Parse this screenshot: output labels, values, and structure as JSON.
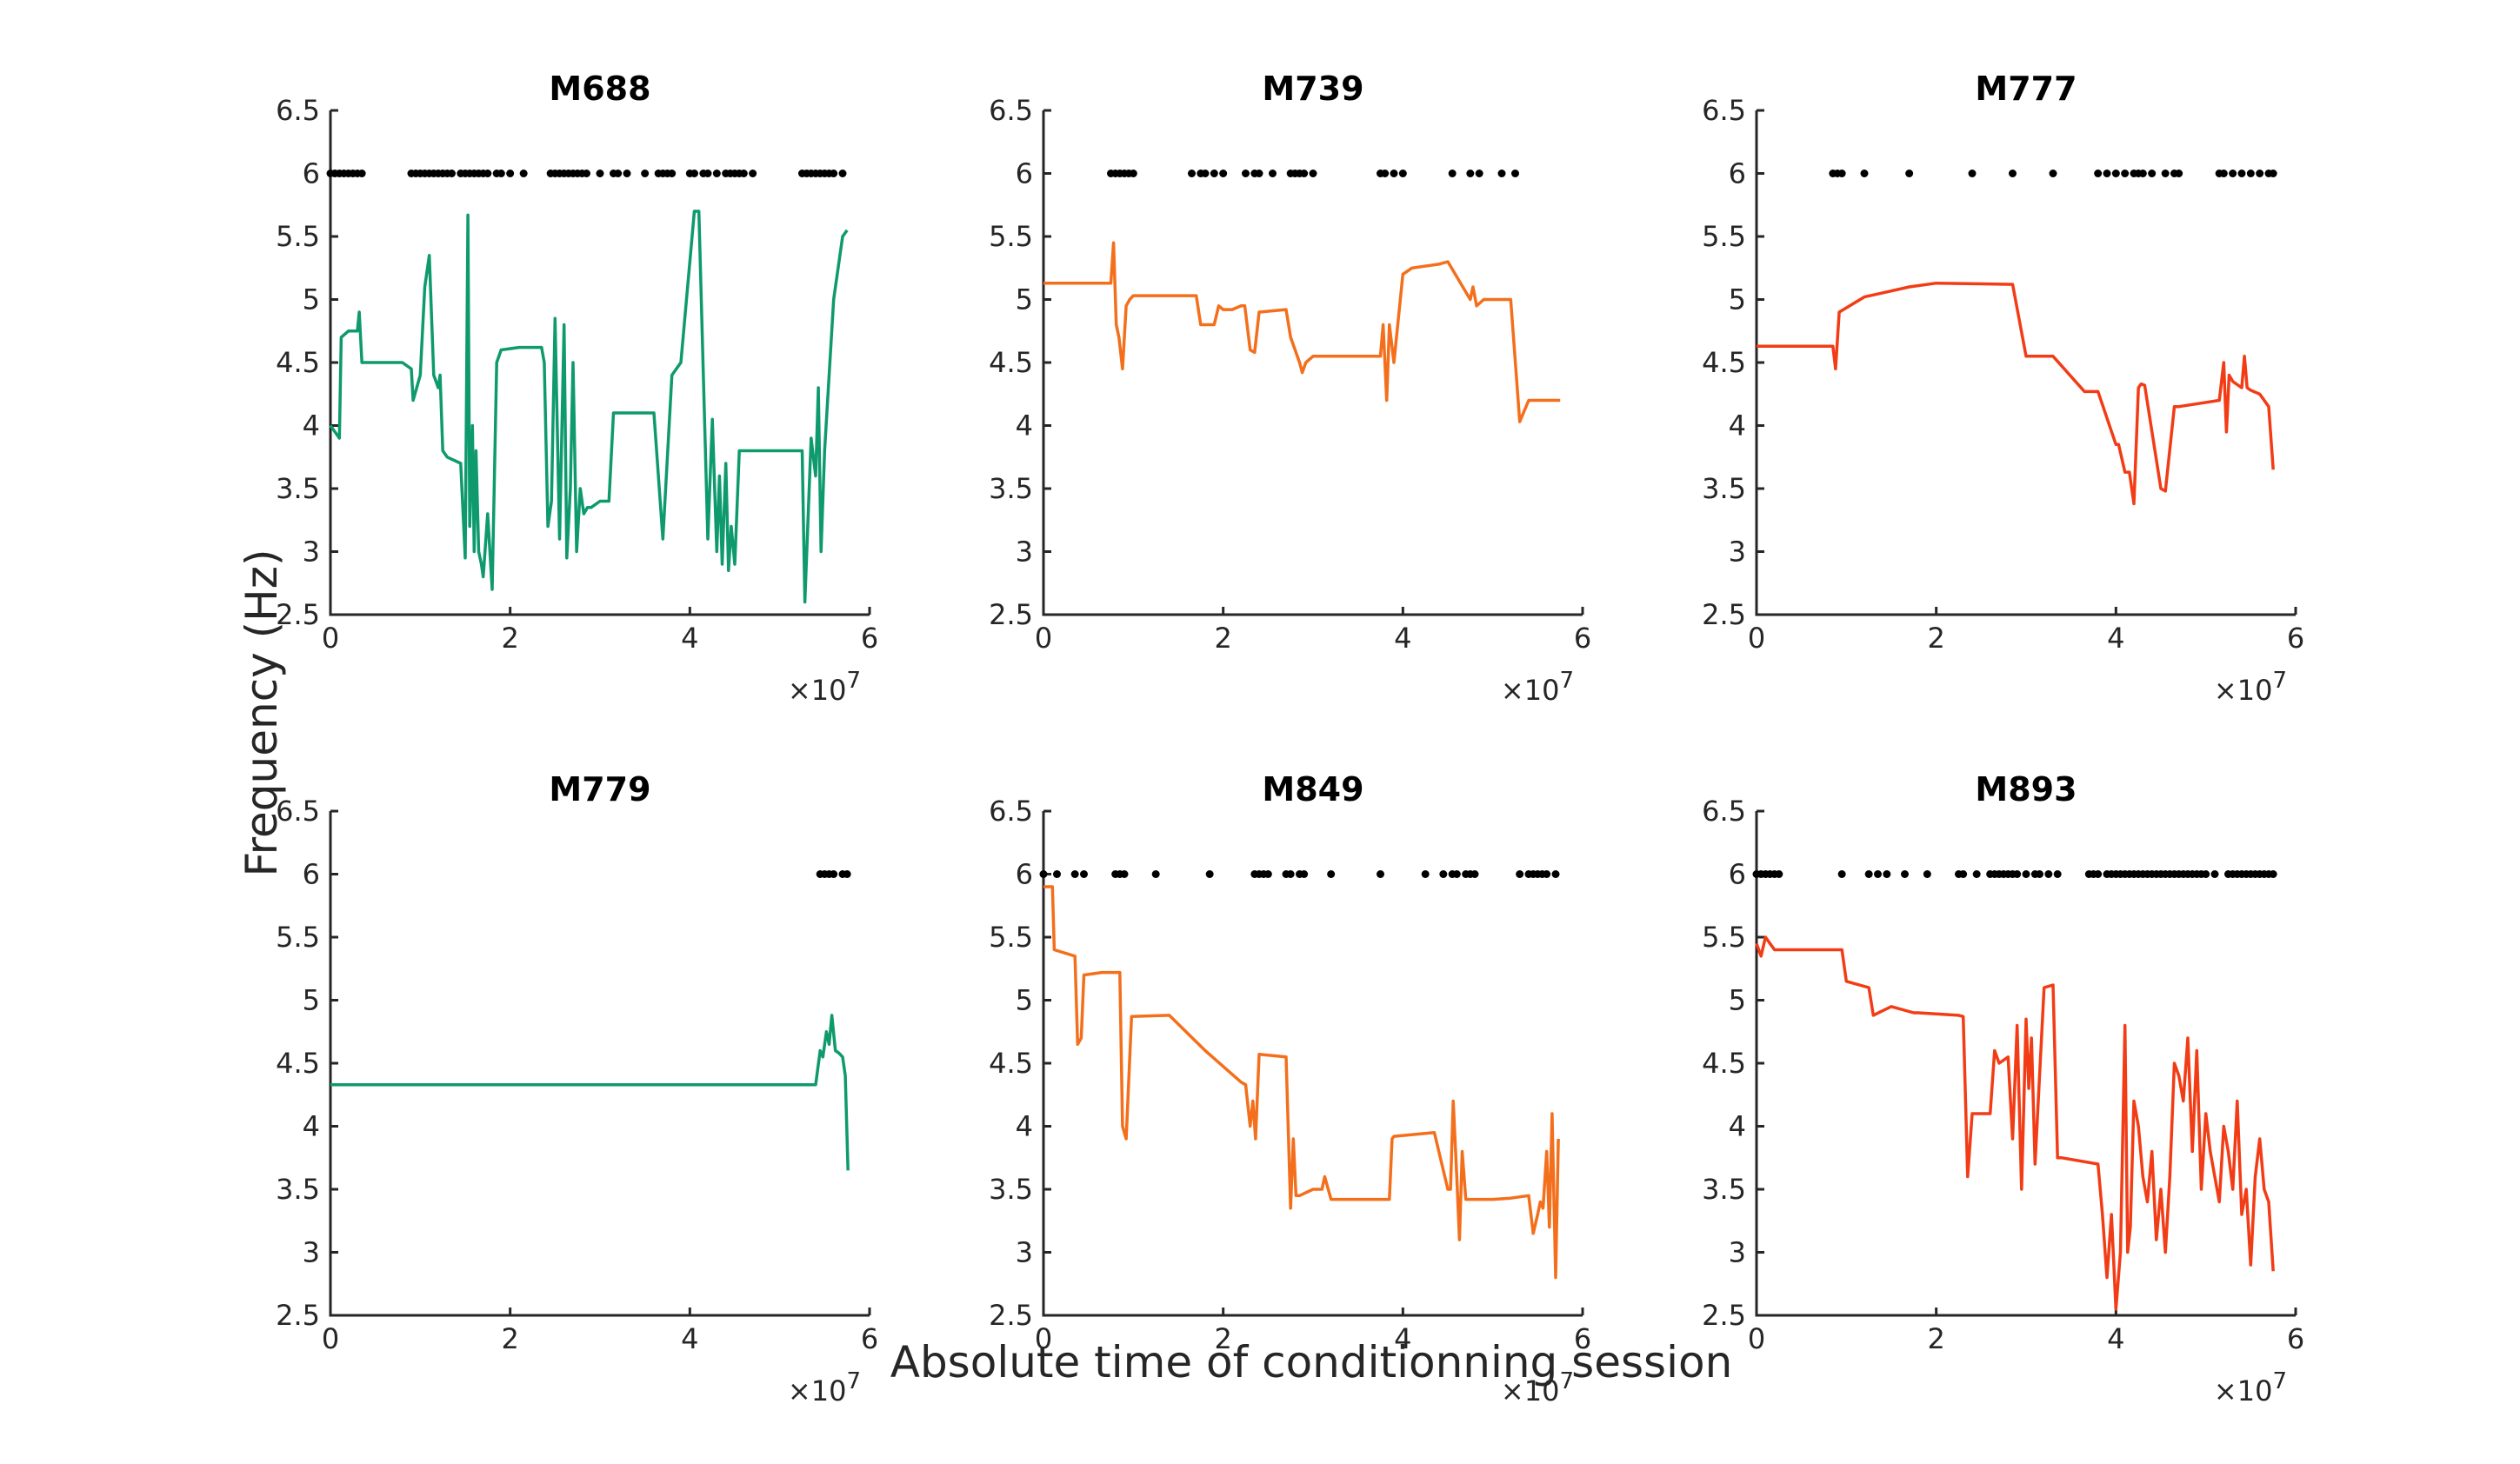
{
  "figure": {
    "ylabel": "Frequency (Hz)",
    "xlabel": "Absolute time of conditionning session"
  },
  "chart_data": [
    {
      "type": "line",
      "title": "M688",
      "color": "#0f9a6e",
      "xlim": [
        0,
        60000000
      ],
      "ylim": [
        2.5,
        6.5
      ],
      "xticks": [
        0,
        20000000,
        40000000,
        60000000
      ],
      "xtick_labels": [
        "0",
        "2",
        "4",
        "6"
      ],
      "yticks": [
        2.5,
        3,
        3.5,
        4,
        4.5,
        5,
        5.5,
        6,
        6.5
      ],
      "ytick_labels": [
        "2.5",
        "3",
        "3.5",
        "4",
        "4.5",
        "5",
        "5.5",
        "6",
        "6.5"
      ],
      "x_multiplier": "×10",
      "x_multiplier_exp": "7",
      "events_y": 6,
      "events_x": [
        0,
        500000,
        1000000,
        1500000,
        2000000,
        2500000,
        3000000,
        3500000,
        9000000,
        9500000,
        10000000,
        10500000,
        11000000,
        11500000,
        12000000,
        12500000,
        13000000,
        13500000,
        14500000,
        15000000,
        15500000,
        16000000,
        16500000,
        17000000,
        17500000,
        18500000,
        19000000,
        20000000,
        21500000,
        24500000,
        25000000,
        25500000,
        26000000,
        26500000,
        27000000,
        27500000,
        28000000,
        28500000,
        30000000,
        31500000,
        32000000,
        33000000,
        35000000,
        36500000,
        37000000,
        37500000,
        38000000,
        40000000,
        40500000,
        41500000,
        42000000,
        43000000,
        44000000,
        44500000,
        45000000,
        45500000,
        46000000,
        47000000,
        52500000,
        53000000,
        53500000,
        54000000,
        54500000,
        55000000,
        55500000,
        56000000,
        57000000
      ],
      "x": [
        0,
        1000000,
        1200000,
        2000000,
        3000000,
        3200000,
        3500000,
        8000000,
        9000000,
        9200000,
        10000000,
        10500000,
        11000000,
        11500000,
        12000000,
        12200000,
        12500000,
        13000000,
        14500000,
        15000000,
        15300000,
        15500000,
        15800000,
        16000000,
        16200000,
        16500000,
        16800000,
        17000000,
        17500000,
        18000000,
        18500000,
        19000000,
        21000000,
        23500000,
        23800000,
        24200000,
        24600000,
        25000000,
        25500000,
        26000000,
        26300000,
        26700000,
        27000000,
        27400000,
        27800000,
        28200000,
        28600000,
        29000000,
        30000000,
        31000000,
        31500000,
        33000000,
        36000000,
        37000000,
        38000000,
        39000000,
        40500000,
        41000000,
        42000000,
        42500000,
        43000000,
        43300000,
        43600000,
        44000000,
        44300000,
        44600000,
        45000000,
        45500000,
        47000000,
        52500000,
        52800000,
        53500000,
        54000000,
        54300000,
        54600000,
        55000000,
        55500000,
        56000000,
        57000000,
        57500000
      ],
      "y": [
        4.0,
        3.9,
        4.7,
        4.75,
        4.75,
        4.9,
        4.5,
        4.5,
        4.45,
        4.2,
        4.4,
        5.1,
        5.35,
        4.4,
        4.3,
        4.4,
        3.8,
        3.75,
        3.7,
        2.95,
        5.67,
        3.2,
        4.0,
        3.0,
        3.8,
        3.0,
        2.9,
        2.8,
        3.3,
        2.7,
        4.5,
        4.6,
        4.62,
        4.62,
        4.5,
        3.2,
        3.4,
        4.85,
        3.1,
        4.8,
        2.95,
        3.5,
        4.5,
        3.0,
        3.5,
        3.3,
        3.35,
        3.35,
        3.4,
        3.4,
        4.1,
        4.1,
        4.1,
        3.1,
        4.4,
        4.5,
        5.7,
        5.7,
        3.1,
        4.05,
        3.0,
        3.6,
        2.9,
        3.7,
        2.85,
        3.2,
        2.9,
        3.8,
        3.8,
        3.8,
        2.6,
        3.9,
        3.6,
        4.3,
        3.0,
        3.8,
        4.4,
        5.0,
        5.5,
        5.55
      ]
    },
    {
      "type": "line",
      "title": "M739",
      "color": "#f36f1c",
      "xlim": [
        0,
        60000000
      ],
      "ylim": [
        2.5,
        6.5
      ],
      "xticks": [
        0,
        20000000,
        40000000,
        60000000
      ],
      "xtick_labels": [
        "0",
        "2",
        "4",
        "6"
      ],
      "yticks": [
        2.5,
        3,
        3.5,
        4,
        4.5,
        5,
        5.5,
        6,
        6.5
      ],
      "ytick_labels": [
        "2.5",
        "3",
        "3.5",
        "4",
        "4.5",
        "5",
        "5.5",
        "6",
        "6.5"
      ],
      "x_multiplier": "×10",
      "x_multiplier_exp": "7",
      "events_y": 6,
      "events_x": [
        7500000,
        8000000,
        8500000,
        9000000,
        9500000,
        10000000,
        16500000,
        17500000,
        18000000,
        19000000,
        20000000,
        22500000,
        23500000,
        24000000,
        25500000,
        27500000,
        28000000,
        28500000,
        29000000,
        30000000,
        37500000,
        38000000,
        39000000,
        40000000,
        45500000,
        47500000,
        48500000,
        51000000,
        52500000
      ],
      "x": [
        0,
        7500000,
        7800000,
        8100000,
        8400000,
        8800000,
        9200000,
        9600000,
        10000000,
        11500000,
        17000000,
        17500000,
        19000000,
        19500000,
        20000000,
        21000000,
        22000000,
        22400000,
        23000000,
        23500000,
        24000000,
        27000000,
        27500000,
        28500000,
        28800000,
        29200000,
        30000000,
        36500000,
        37500000,
        37800000,
        38200000,
        38500000,
        39000000,
        40000000,
        41000000,
        44000000,
        45000000,
        47500000,
        47800000,
        48200000,
        49000000,
        51500000,
        52000000,
        53000000,
        54000000,
        57500000
      ],
      "y": [
        5.13,
        5.13,
        5.45,
        4.8,
        4.7,
        4.45,
        4.95,
        5.0,
        5.03,
        5.03,
        5.03,
        4.8,
        4.8,
        4.95,
        4.92,
        4.92,
        4.95,
        4.95,
        4.6,
        4.58,
        4.9,
        4.92,
        4.7,
        4.5,
        4.42,
        4.5,
        4.55,
        4.55,
        4.55,
        4.8,
        4.2,
        4.8,
        4.5,
        5.2,
        5.25,
        5.28,
        5.3,
        5.0,
        5.1,
        4.95,
        5.0,
        5.0,
        5.0,
        4.03,
        4.2,
        4.2
      ]
    },
    {
      "type": "line",
      "title": "M777",
      "color": "#f23c16",
      "xlim": [
        0,
        60000000
      ],
      "ylim": [
        2.5,
        6.5
      ],
      "xticks": [
        0,
        20000000,
        40000000,
        60000000
      ],
      "xtick_labels": [
        "0",
        "2",
        "4",
        "6"
      ],
      "yticks": [
        2.5,
        3,
        3.5,
        4,
        4.5,
        5,
        5.5,
        6,
        6.5
      ],
      "ytick_labels": [
        "2.5",
        "3",
        "3.5",
        "4",
        "4.5",
        "5",
        "5.5",
        "6",
        "6.5"
      ],
      "x_multiplier": "×10",
      "x_multiplier_exp": "7",
      "events_y": 6,
      "events_x": [
        8500000,
        9000000,
        9500000,
        12000000,
        17000000,
        24000000,
        28500000,
        33000000,
        38000000,
        39000000,
        40000000,
        41000000,
        42000000,
        42500000,
        43000000,
        44000000,
        45500000,
        46500000,
        47000000,
        51500000,
        52000000,
        53000000,
        54000000,
        55000000,
        56000000,
        57000000,
        57500000
      ],
      "x": [
        0,
        8500000,
        8800000,
        9200000,
        12000000,
        17000000,
        20000000,
        28500000,
        30000000,
        33000000,
        36500000,
        38000000,
        40000000,
        40300000,
        41000000,
        41500000,
        42000000,
        42500000,
        42800000,
        43200000,
        45000000,
        45500000,
        46500000,
        46800000,
        47000000,
        51500000,
        52000000,
        52300000,
        52600000,
        53000000,
        54000000,
        54300000,
        54600000,
        55000000,
        56000000,
        57000000,
        57500000
      ],
      "y": [
        4.63,
        4.63,
        4.45,
        4.9,
        5.02,
        5.1,
        5.13,
        5.12,
        4.55,
        4.55,
        4.27,
        4.27,
        3.85,
        3.85,
        3.63,
        3.63,
        3.38,
        4.3,
        4.33,
        4.32,
        3.5,
        3.48,
        4.15,
        4.15,
        4.15,
        4.2,
        4.5,
        3.95,
        4.4,
        4.35,
        4.3,
        4.55,
        4.3,
        4.28,
        4.25,
        4.15,
        3.65
      ]
    },
    {
      "type": "line",
      "title": "M779",
      "color": "#0f9a6e",
      "xlim": [
        0,
        60000000
      ],
      "ylim": [
        2.5,
        6.5
      ],
      "xticks": [
        0,
        20000000,
        40000000,
        60000000
      ],
      "xtick_labels": [
        "0",
        "2",
        "4",
        "6"
      ],
      "yticks": [
        2.5,
        3,
        3.5,
        4,
        4.5,
        5,
        5.5,
        6,
        6.5
      ],
      "ytick_labels": [
        "2.5",
        "3",
        "3.5",
        "4",
        "4.5",
        "5",
        "5.5",
        "6",
        "6.5"
      ],
      "x_multiplier": "×10",
      "x_multiplier_exp": "7",
      "events_y": 6,
      "events_x": [
        54500000,
        55000000,
        55500000,
        56000000,
        57000000,
        57500000
      ],
      "x": [
        0,
        54000000,
        54500000,
        54800000,
        55200000,
        55500000,
        55800000,
        56200000,
        56600000,
        57000000,
        57300000,
        57600000
      ],
      "y": [
        4.33,
        4.33,
        4.6,
        4.55,
        4.75,
        4.65,
        4.88,
        4.6,
        4.58,
        4.55,
        4.4,
        3.65
      ]
    },
    {
      "type": "line",
      "title": "M849",
      "color": "#f36f1c",
      "xlim": [
        0,
        60000000
      ],
      "ylim": [
        2.5,
        6.5
      ],
      "xticks": [
        0,
        20000000,
        40000000,
        60000000
      ],
      "xtick_labels": [
        "0",
        "2",
        "4",
        "6"
      ],
      "yticks": [
        2.5,
        3,
        3.5,
        4,
        4.5,
        5,
        5.5,
        6,
        6.5
      ],
      "ytick_labels": [
        "2.5",
        "3",
        "3.5",
        "4",
        "4.5",
        "5",
        "5.5",
        "6",
        "6.5"
      ],
      "x_multiplier": "×10",
      "x_multiplier_exp": "7",
      "events_y": 6,
      "events_x": [
        0,
        1500000,
        3500000,
        4500000,
        8000000,
        8500000,
        9000000,
        12500000,
        18500000,
        23500000,
        24000000,
        24500000,
        25000000,
        27000000,
        27500000,
        28500000,
        29000000,
        32000000,
        37500000,
        42500000,
        44500000,
        45500000,
        46000000,
        47000000,
        47500000,
        48000000,
        53000000,
        54000000,
        54500000,
        55000000,
        55500000,
        56000000,
        57000000
      ],
      "x": [
        0,
        1000000,
        1200000,
        3500000,
        3800000,
        4200000,
        4500000,
        6500000,
        8500000,
        8800000,
        9200000,
        9800000,
        14000000,
        18000000,
        22000000,
        22500000,
        23000000,
        23300000,
        23600000,
        24000000,
        27000000,
        27500000,
        27800000,
        28100000,
        28500000,
        30000000,
        31000000,
        31300000,
        32000000,
        38000000,
        38500000,
        38800000,
        39000000,
        43500000,
        45000000,
        45300000,
        45600000,
        46000000,
        46300000,
        46600000,
        47000000,
        50000000,
        52000000,
        54000000,
        54500000,
        55000000,
        55300000,
        55600000,
        56000000,
        56300000,
        56600000,
        57000000,
        57300000
      ],
      "y": [
        5.9,
        5.9,
        5.4,
        5.35,
        4.65,
        4.7,
        5.2,
        5.22,
        5.22,
        4.0,
        3.9,
        4.87,
        4.88,
        4.6,
        4.35,
        4.33,
        4.0,
        4.2,
        3.9,
        4.57,
        4.55,
        3.35,
        3.9,
        3.45,
        3.45,
        3.5,
        3.5,
        3.6,
        3.42,
        3.42,
        3.42,
        3.9,
        3.92,
        3.95,
        3.5,
        3.5,
        4.2,
        3.6,
        3.1,
        3.8,
        3.42,
        3.42,
        3.43,
        3.45,
        3.15,
        3.3,
        3.4,
        3.35,
        3.8,
        3.2,
        4.1,
        2.8,
        3.9
      ]
    },
    {
      "type": "line",
      "title": "M893",
      "color": "#f23c16",
      "xlim": [
        0,
        60000000
      ],
      "ylim": [
        2.5,
        6.5
      ],
      "xticks": [
        0,
        20000000,
        40000000,
        60000000
      ],
      "xtick_labels": [
        "0",
        "2",
        "4",
        "6"
      ],
      "yticks": [
        2.5,
        3,
        3.5,
        4,
        4.5,
        5,
        5.5,
        6,
        6.5
      ],
      "ytick_labels": [
        "2.5",
        "3",
        "3.5",
        "4",
        "4.5",
        "5",
        "5.5",
        "6",
        "6.5"
      ],
      "x_multiplier": "×10",
      "x_multiplier_exp": "7",
      "events_y": 6,
      "events_x": [
        0,
        500000,
        1000000,
        1500000,
        2000000,
        2500000,
        9500000,
        12500000,
        13500000,
        14500000,
        16500000,
        19000000,
        22500000,
        23000000,
        24500000,
        26000000,
        26500000,
        27000000,
        27500000,
        28000000,
        28500000,
        29000000,
        30000000,
        31000000,
        31500000,
        32500000,
        33500000,
        37000000,
        37500000,
        38000000,
        39000000,
        39500000,
        40000000,
        40500000,
        41000000,
        41500000,
        42000000,
        42500000,
        43000000,
        43500000,
        44000000,
        44500000,
        45000000,
        45500000,
        46000000,
        46500000,
        47000000,
        47500000,
        48000000,
        48500000,
        49000000,
        49500000,
        50000000,
        51000000,
        52500000,
        53000000,
        53500000,
        54000000,
        54500000,
        55000000,
        55500000,
        56000000,
        56500000,
        57000000,
        57500000
      ],
      "x": [
        0,
        500000,
        1000000,
        1500000,
        2000000,
        4000000,
        9500000,
        10000000,
        12500000,
        13000000,
        15000000,
        17500000,
        18000000,
        22500000,
        23000000,
        23500000,
        24000000,
        26000000,
        26500000,
        27000000,
        28000000,
        28500000,
        29000000,
        29500000,
        30000000,
        30300000,
        30600000,
        31000000,
        32000000,
        33000000,
        33500000,
        34000000,
        38000000,
        38500000,
        39000000,
        39500000,
        40000000,
        40500000,
        41000000,
        41300000,
        41600000,
        42000000,
        42500000,
        43000000,
        43500000,
        44000000,
        44500000,
        45000000,
        45500000,
        46000000,
        46500000,
        47000000,
        47500000,
        48000000,
        48500000,
        49000000,
        49500000,
        50000000,
        50500000,
        51000000,
        51500000,
        52000000,
        52500000,
        53000000,
        53500000,
        54000000,
        54500000,
        55000000,
        55500000,
        56000000,
        56500000,
        57000000,
        57500000
      ],
      "y": [
        5.45,
        5.35,
        5.5,
        5.45,
        5.4,
        5.4,
        5.4,
        5.15,
        5.1,
        4.88,
        4.95,
        4.9,
        4.9,
        4.88,
        4.87,
        3.6,
        4.1,
        4.1,
        4.6,
        4.5,
        4.55,
        3.9,
        4.8,
        3.5,
        4.85,
        4.3,
        4.7,
        3.7,
        5.1,
        5.12,
        3.75,
        3.75,
        3.7,
        3.3,
        2.8,
        3.3,
        2.55,
        3.0,
        4.8,
        3.0,
        3.2,
        4.2,
        4.0,
        3.6,
        3.4,
        3.8,
        3.1,
        3.5,
        3.0,
        3.6,
        4.5,
        4.4,
        4.2,
        4.7,
        3.8,
        4.6,
        3.5,
        4.1,
        3.8,
        3.6,
        3.4,
        4.0,
        3.8,
        3.5,
        4.2,
        3.3,
        3.5,
        2.9,
        3.6,
        3.9,
        3.5,
        3.4,
        2.85
      ]
    }
  ]
}
